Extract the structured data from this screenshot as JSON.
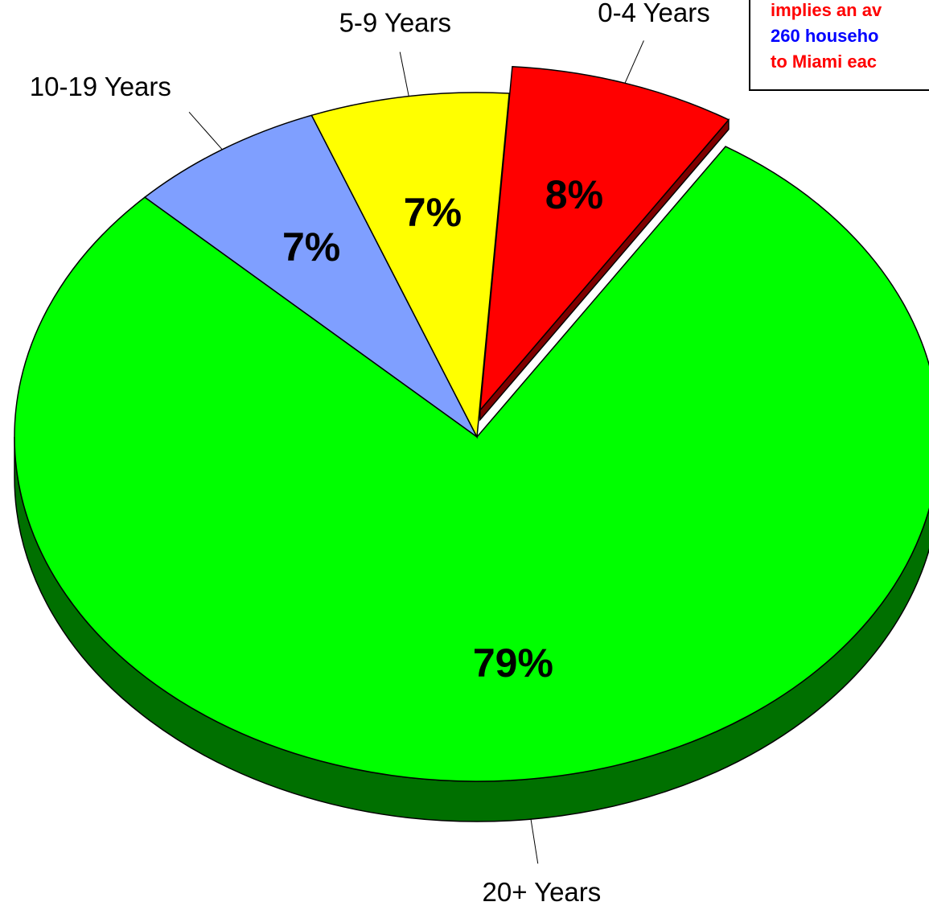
{
  "chart_data": {
    "type": "pie",
    "categories": [
      "0-4 Years",
      "20+ Years",
      "10-19 Years",
      "5-9 Years"
    ],
    "values": [
      8,
      79,
      7,
      7
    ],
    "value_labels": [
      "8%",
      "79%",
      "7%",
      "7%"
    ],
    "colors": [
      "#ff0000",
      "#00ff00",
      "#7f9fff",
      "#ffff00"
    ],
    "side_colors": [
      "#800000",
      "#007000",
      "#4060b0",
      "#a0a000"
    ],
    "exploded": [
      true,
      false,
      false,
      false
    ],
    "annotation": [
      {
        "text": "implies an av",
        "color": "#ff0000"
      },
      {
        "text": "260 househo",
        "color": "#0000ff"
      },
      {
        "text": "to Miami eac",
        "color": "#ff0000"
      }
    ]
  }
}
